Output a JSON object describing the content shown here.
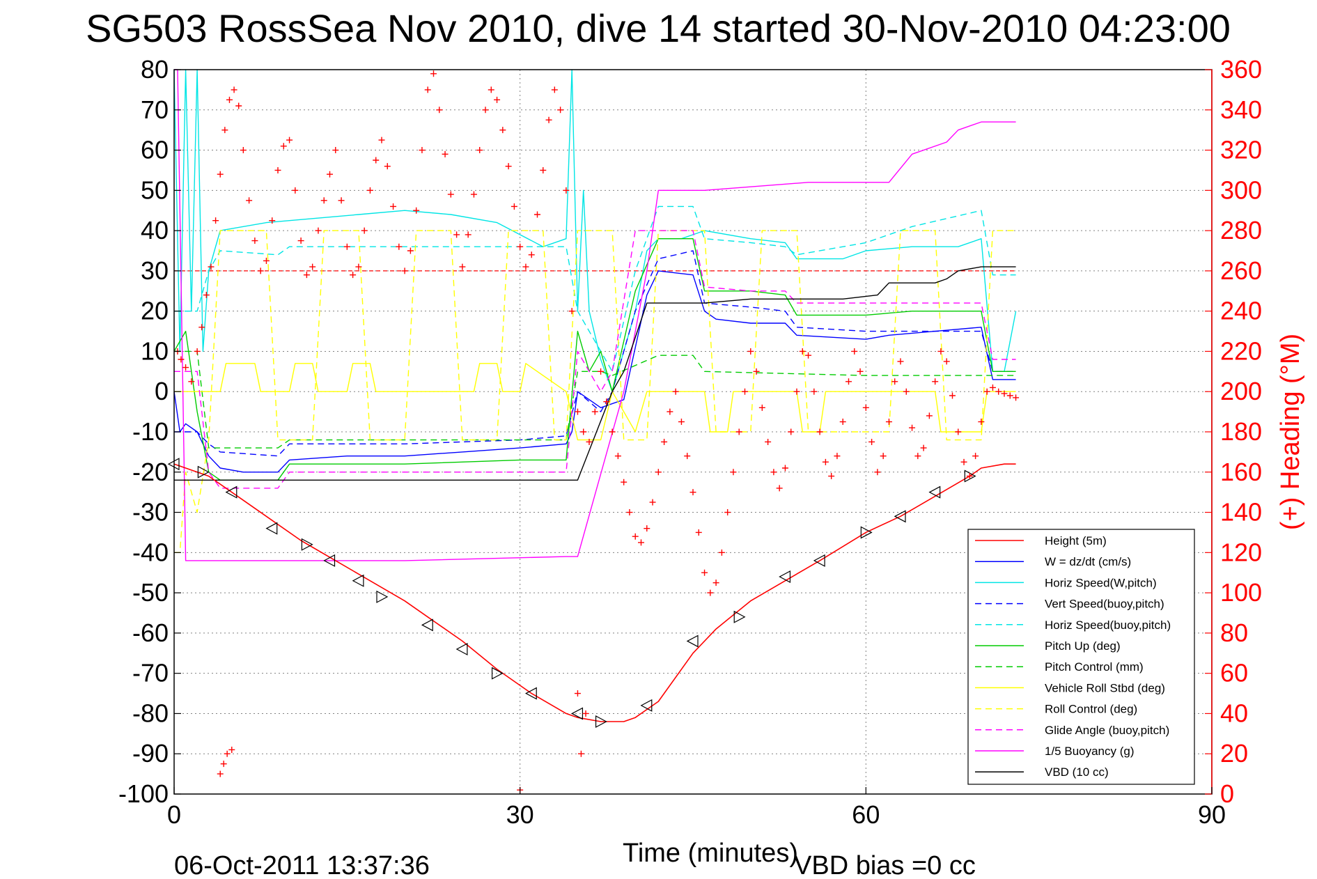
{
  "chart_data": {
    "type": "line",
    "title": "SG503 RossSea Nov 2010, dive 14 started 30-Nov-2010 04:23:00",
    "xlabel": "Time (minutes)",
    "ylabel_right": "(+) Heading (°M)",
    "xlim": [
      0,
      90
    ],
    "ylim_left": [
      -100,
      80
    ],
    "ylim_right": [
      0,
      360
    ],
    "x_ticks": [
      "0",
      "30",
      "60",
      "90"
    ],
    "y_ticks_left": [
      "80",
      "70",
      "60",
      "50",
      "40",
      "30",
      "20",
      "10",
      "0",
      "-10",
      "-20",
      "-30",
      "-40",
      "-50",
      "-60",
      "-70",
      "-80",
      "-90",
      "-100"
    ],
    "y_ticks_right": [
      "360",
      "340",
      "320",
      "300",
      "280",
      "260",
      "240",
      "220",
      "200",
      "180",
      "160",
      "140",
      "120",
      "100",
      "80",
      "60",
      "40",
      "20",
      "0"
    ],
    "grid": true,
    "legend_position": "bottom-right",
    "footer_left": "06-Oct-2011 13:37:36",
    "footer_right": "VBD bias =0 cc",
    "reference_line": {
      "y": 30,
      "color": "#ff0000",
      "style": "dashed"
    },
    "series": [
      {
        "name": "Height (5m)",
        "color": "#ff0000",
        "dash": "solid",
        "x": [
          0,
          1,
          3,
          5,
          8,
          11,
          14,
          17,
          20,
          22,
          25,
          28,
          31,
          34,
          35,
          37,
          39,
          40,
          42,
          45,
          47,
          50,
          53,
          56,
          60,
          63,
          66,
          69,
          70,
          72,
          73
        ],
        "y": [
          -18,
          -19,
          -21,
          -25,
          -31,
          -37,
          -42,
          -47,
          -52,
          -56,
          -62,
          -69,
          -75,
          -80,
          -81,
          -82,
          -82,
          -81,
          -77,
          -65,
          -59,
          -52,
          -47,
          -42,
          -35,
          -31,
          -26,
          -21,
          -19,
          -18,
          -18
        ]
      },
      {
        "name": "W = dz/dt (cm/s)",
        "color": "#0000ff",
        "dash": "solid",
        "x": [
          0,
          0.5,
          1,
          2,
          3,
          4,
          6,
          9,
          10,
          15,
          20,
          25,
          30,
          34,
          34.5,
          35,
          37,
          39,
          41,
          42,
          45,
          46,
          47,
          50,
          53,
          54,
          60,
          62,
          66,
          70,
          71,
          73
        ],
        "y": [
          0,
          -10,
          -8,
          -10,
          -16,
          -19,
          -20,
          -20,
          -17,
          -16,
          -16,
          -15,
          -14,
          -13,
          -10,
          0,
          -4,
          -2,
          24,
          30,
          29,
          20,
          18,
          17,
          17,
          14,
          13,
          14,
          15,
          16,
          3,
          3
        ]
      },
      {
        "name": "Horiz Speed(W,pitch)",
        "color": "#00e5e5",
        "dash": "solid",
        "x": [
          0,
          0.5,
          1,
          1.5,
          2,
          2.5,
          3,
          3.5,
          4,
          8,
          12,
          16,
          20,
          24,
          28,
          32,
          34,
          34.5,
          35,
          35.5,
          36,
          37,
          38,
          40,
          41,
          42,
          44,
          46,
          50,
          53,
          54,
          58,
          60,
          64,
          68,
          70,
          71,
          72,
          73
        ],
        "y": [
          80,
          10,
          80,
          20,
          80,
          10,
          30,
          35,
          40,
          42,
          43,
          44,
          45,
          44,
          42,
          36,
          38,
          80,
          20,
          50,
          20,
          8,
          0,
          20,
          35,
          38,
          38,
          40,
          38,
          37,
          33,
          33,
          35,
          36,
          36,
          38,
          5,
          5,
          20
        ]
      },
      {
        "name": "Vert Speed(buoy,pitch)",
        "color": "#0000ff",
        "dash": "dashed",
        "x": [
          0,
          2,
          3,
          4,
          9,
          10,
          20,
          30,
          34,
          35,
          37,
          38,
          40,
          42,
          45,
          46,
          50,
          53,
          54,
          60,
          64,
          70,
          71,
          73
        ],
        "y": [
          -10,
          -10,
          -13,
          -15,
          -16,
          -13,
          -13,
          -12,
          -11,
          0,
          -5,
          0,
          20,
          33,
          35,
          22,
          21,
          20,
          16,
          15,
          15,
          15,
          5,
          5
        ]
      },
      {
        "name": "Horiz Speed(buoy,pitch)",
        "color": "#00e5e5",
        "dash": "dashed",
        "x": [
          0,
          2,
          3,
          4,
          9,
          10,
          20,
          30,
          34,
          35,
          37,
          38,
          40,
          42,
          45,
          46,
          50,
          53,
          54,
          60,
          64,
          70,
          71,
          73
        ],
        "y": [
          20,
          20,
          30,
          35,
          34,
          36,
          36,
          36,
          36,
          20,
          10,
          5,
          30,
          46,
          46,
          38,
          37,
          36,
          34,
          37,
          41,
          45,
          29,
          29
        ]
      },
      {
        "name": "Pitch Up (deg)",
        "color": "#00cc00",
        "dash": "solid",
        "x": [
          0,
          1,
          2,
          3,
          4,
          9,
          10,
          20,
          30,
          34,
          35,
          36,
          37,
          38,
          40,
          42,
          45,
          46,
          50,
          53,
          54,
          60,
          64,
          70,
          71,
          73
        ],
        "y": [
          10,
          15,
          -5,
          -20,
          -22,
          -22,
          -18,
          -18,
          -17,
          -17,
          15,
          5,
          10,
          0,
          25,
          38,
          38,
          25,
          25,
          24,
          19,
          19,
          20,
          20,
          5,
          5
        ]
      },
      {
        "name": "Pitch Control (mm)",
        "color": "#00cc00",
        "dash": "dashed",
        "x": [
          0,
          2,
          3,
          9,
          10,
          34,
          35,
          37,
          38,
          42,
          45,
          46,
          60,
          70,
          71,
          73
        ],
        "y": [
          10,
          10,
          -14,
          -14,
          -12,
          -12,
          5,
          5,
          4,
          9,
          9,
          5,
          4,
          4,
          4,
          4
        ]
      },
      {
        "name": "Vehicle Roll Stbd (deg)",
        "color": "#ffff00",
        "dash": "solid",
        "x": [
          0,
          4,
          4.5,
          7,
          7.5,
          10,
          10.5,
          12,
          12.5,
          15,
          15.5,
          17,
          17.5,
          26,
          26.5,
          28,
          28.5,
          30,
          30.5,
          34,
          35,
          37,
          38,
          40,
          41,
          46,
          46.5,
          48,
          48.5,
          54,
          54.5,
          56,
          56.5,
          66,
          66.5,
          70,
          70.5,
          73
        ],
        "y": [
          0,
          0,
          7,
          7,
          0,
          0,
          7,
          7,
          0,
          0,
          7,
          7,
          0,
          0,
          7,
          7,
          0,
          0,
          7,
          0,
          -12,
          -12,
          0,
          -10,
          0,
          0,
          -10,
          -10,
          0,
          0,
          -10,
          -10,
          0,
          0,
          -10,
          -10,
          0,
          0
        ]
      },
      {
        "name": "Roll Control (deg)",
        "color": "#ffff00",
        "dash": "dashed",
        "x": [
          0,
          0.5,
          1,
          2,
          3,
          4,
          8,
          9,
          12,
          13,
          16,
          17,
          20,
          21,
          24,
          25,
          28,
          29,
          32,
          33,
          34,
          35,
          38,
          39,
          41,
          42,
          46,
          47,
          50,
          51,
          54,
          55,
          62,
          63,
          66,
          67,
          70,
          71,
          73
        ],
        "y": [
          -40,
          -40,
          -20,
          -30,
          -12,
          40,
          40,
          -12,
          -12,
          40,
          40,
          -12,
          -12,
          40,
          40,
          -12,
          -12,
          40,
          40,
          -12,
          -12,
          40,
          40,
          -12,
          -12,
          40,
          40,
          -10,
          -10,
          40,
          40,
          -10,
          -10,
          40,
          40,
          -12,
          -12,
          40,
          40
        ]
      },
      {
        "name": "Glide Angle (buoy,pitch)",
        "color": "#ff00ff",
        "dash": "dashed",
        "x": [
          0,
          2,
          3,
          4,
          9,
          10,
          20,
          30,
          34,
          35,
          37,
          38,
          40,
          42,
          45,
          46,
          50,
          53,
          54,
          60,
          64,
          70,
          71,
          73
        ],
        "y": [
          5,
          5,
          -20,
          -24,
          -24,
          -20,
          -20,
          -20,
          -20,
          10,
          0,
          5,
          40,
          40,
          40,
          26,
          25,
          25,
          22,
          22,
          22,
          22,
          8,
          8
        ]
      },
      {
        "name": "1/5 Buoyancy (g)",
        "color": "#ff00ff",
        "dash": "solid",
        "x": [
          0,
          0.3,
          1,
          3,
          10,
          20,
          34,
          35,
          39,
          41,
          42,
          45,
          46,
          55,
          60,
          62,
          64,
          67,
          68,
          70,
          73
        ],
        "y": [
          80,
          80,
          -42,
          -42,
          -42,
          -42,
          -41,
          -41,
          0,
          30,
          50,
          50,
          50,
          52,
          52,
          52,
          59,
          62,
          65,
          67,
          67
        ]
      },
      {
        "name": "VBD (10 cc)",
        "color": "#000000",
        "dash": "solid",
        "x": [
          0,
          0.5,
          1,
          2,
          10,
          20,
          34.5,
          35,
          38,
          39,
          41,
          41.5,
          46,
          50,
          58,
          61,
          62,
          64,
          66,
          67,
          68,
          70,
          73
        ],
        "y": [
          -22,
          -22,
          -22,
          -22,
          -22,
          -22,
          -22,
          -22,
          0,
          5,
          22,
          22,
          22,
          23,
          23,
          24,
          27,
          27,
          27,
          28,
          30,
          31,
          31
        ]
      }
    ],
    "heading_points": {
      "name": "(+) Heading",
      "color": "#ff0000",
      "x": [
        0.3,
        0.6,
        1.0,
        1.5,
        2.0,
        2.4,
        2.8,
        3.2,
        3.6,
        4.0,
        4.4,
        4.8,
        5.2,
        5.6,
        6.0,
        6.5,
        7.0,
        7.5,
        8.0,
        8.5,
        9.0,
        9.5,
        10.0,
        10.5,
        11.0,
        11.5,
        12.0,
        12.5,
        13.0,
        13.5,
        14.0,
        14.5,
        15.0,
        15.5,
        16.0,
        16.5,
        17.0,
        17.5,
        18.0,
        18.5,
        19.0,
        19.5,
        20.0,
        20.5,
        21.0,
        21.5,
        22.0,
        22.5,
        23.0,
        23.5,
        24.0,
        24.5,
        25.0,
        25.5,
        26.0,
        26.5,
        27.0,
        27.5,
        28.0,
        28.5,
        29.0,
        29.5,
        30.0,
        30.5,
        31.0,
        31.5,
        32.0,
        32.5,
        33.0,
        33.5,
        34.0,
        34.5,
        35.0,
        35.5,
        36.0,
        36.5,
        37.0,
        37.5,
        38.0,
        38.5,
        39.0,
        39.5,
        40.0,
        40.5,
        41.0,
        41.5,
        42.0,
        42.5,
        43.0,
        43.5,
        44.0,
        44.5,
        45.0,
        45.5,
        46.0,
        46.5,
        47.0,
        47.5,
        48.0,
        48.5,
        49.0,
        49.5,
        50.0,
        50.5,
        51.0,
        51.5,
        52.0,
        52.5,
        53.0,
        53.5,
        54.0,
        54.5,
        55.0,
        55.5,
        56.0,
        56.5,
        57.0,
        57.5,
        58.0,
        58.5,
        59.0,
        59.5,
        60.0,
        60.5,
        61.0,
        61.5,
        62.0,
        62.5,
        63.0,
        63.5,
        64.0,
        64.5,
        65.0,
        65.5,
        66.0,
        66.5,
        67.0,
        67.5,
        68.0,
        68.5,
        69.0,
        69.5,
        70.0,
        70.5,
        71.0,
        71.5,
        72.0,
        72.5,
        73.0,
        4.0,
        4.3,
        4.6,
        5.0,
        30.0,
        35.0,
        35.3,
        35.7
      ],
      "y": [
        220,
        216,
        212,
        205,
        220,
        232,
        248,
        262,
        285,
        308,
        330,
        345,
        350,
        342,
        320,
        295,
        275,
        260,
        265,
        285,
        310,
        322,
        325,
        300,
        275,
        258,
        262,
        280,
        295,
        308,
        320,
        295,
        272,
        258,
        262,
        280,
        300,
        315,
        325,
        312,
        292,
        272,
        260,
        270,
        290,
        320,
        350,
        358,
        340,
        318,
        298,
        278,
        262,
        278,
        298,
        320,
        340,
        350,
        345,
        330,
        312,
        292,
        272,
        262,
        268,
        288,
        310,
        335,
        350,
        340,
        300,
        240,
        190,
        180,
        175,
        190,
        210,
        195,
        180,
        168,
        155,
        140,
        128,
        125,
        132,
        145,
        160,
        175,
        190,
        200,
        185,
        168,
        150,
        130,
        110,
        100,
        105,
        120,
        140,
        160,
        180,
        200,
        220,
        210,
        192,
        175,
        160,
        152,
        162,
        180,
        200,
        220,
        218,
        200,
        180,
        165,
        158,
        168,
        185,
        205,
        220,
        210,
        192,
        175,
        160,
        168,
        185,
        205,
        215,
        200,
        182,
        168,
        172,
        188,
        205,
        220,
        215,
        198,
        180,
        165,
        158,
        168,
        185,
        200,
        202,
        200,
        199,
        198,
        197,
        10,
        15,
        20,
        22,
        2,
        50,
        20,
        40
      ]
    },
    "triangle_markers": {
      "x": [
        0,
        2.5,
        5,
        8.5,
        11.5,
        13.5,
        16,
        18,
        22,
        25,
        28,
        31,
        35,
        37,
        41,
        45,
        49,
        53,
        56,
        60,
        63,
        66,
        69
      ],
      "y": [
        -18,
        -20,
        -25,
        -34,
        -38,
        -42,
        -47,
        -51,
        -58,
        -64,
        -70,
        -75,
        -80,
        -82,
        -78,
        -62,
        -56,
        -46,
        -42,
        -35,
        -31,
        -25,
        -21
      ]
    }
  },
  "legend_labels": [
    "Height (5m)",
    "W = dz/dt (cm/s)",
    "Horiz Speed(W,pitch)",
    "Vert Speed(buoy,pitch)",
    "Horiz Speed(buoy,pitch)",
    "Pitch Up (deg)",
    "Pitch Control (mm)",
    "Vehicle Roll Stbd (deg)",
    "Roll Control (deg)",
    "Glide Angle (buoy,pitch)",
    "1/5 Buoyancy (g)",
    "VBD (10 cc)"
  ]
}
